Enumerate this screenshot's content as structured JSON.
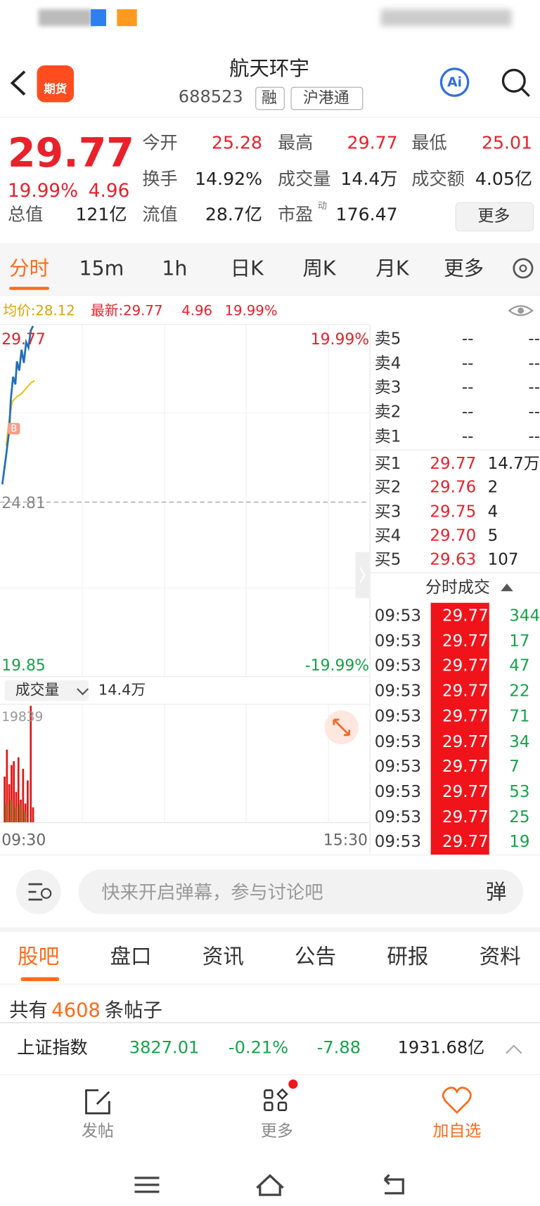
{
  "header": {
    "logo": "期货",
    "title": "航天环宇",
    "code": "688523",
    "tags": [
      "融",
      "沪港通"
    ],
    "ai": "Ai"
  },
  "quote": {
    "price": "29.77",
    "change_pct": "19.99%",
    "change": "4.96",
    "stats": [
      {
        "label": "今开",
        "value": "25.28"
      },
      {
        "label": "最高",
        "value": "29.77"
      },
      {
        "label": "最低",
        "value": "25.01"
      },
      {
        "label": "换手",
        "value": "14.92%"
      },
      {
        "label": "成交量",
        "value": "14.4万"
      },
      {
        "label": "成交额",
        "value": "4.05亿"
      },
      {
        "label": "总值",
        "value": "121亿"
      },
      {
        "label": "流值",
        "value": "28.7亿"
      },
      {
        "label": "市盈",
        "value": "176.47"
      }
    ],
    "pe_note": "动",
    "more": "更多"
  },
  "tabs": [
    "分时",
    "15m",
    "1h",
    "日K",
    "周K",
    "月K",
    "更多"
  ],
  "chart_info": {
    "avg": "均价:28.12",
    "latest": "最新:29.77",
    "change": "4.96",
    "change_pct": "19.99%"
  },
  "chart": {
    "high": "29.77",
    "high_pct": "19.99%",
    "base": "24.81",
    "low": "19.85",
    "low_pct": "-19.99%",
    "marker": "B",
    "volume_selector": "成交量",
    "volume": "14.4万",
    "volume_max": "19839",
    "start_time": "09:30",
    "end_time": "15:30"
  },
  "order_book": {
    "asks": [
      {
        "label": "卖5",
        "price": "--",
        "volume": "--"
      },
      {
        "label": "卖4",
        "price": "--",
        "volume": "--"
      },
      {
        "label": "卖3",
        "price": "--",
        "volume": "--"
      },
      {
        "label": "卖2",
        "price": "--",
        "volume": "--"
      },
      {
        "label": "卖1",
        "price": "--",
        "volume": "--"
      }
    ],
    "bids": [
      {
        "label": "买1",
        "price": "29.77",
        "volume": "14.7万"
      },
      {
        "label": "买2",
        "price": "29.76",
        "volume": "2"
      },
      {
        "label": "买3",
        "price": "29.75",
        "volume": "4"
      },
      {
        "label": "买4",
        "price": "29.70",
        "volume": "5"
      },
      {
        "label": "买5",
        "price": "29.63",
        "volume": "107"
      }
    ]
  },
  "trades": {
    "title": "分时成交",
    "rows": [
      {
        "time": "09:53",
        "price": "29.77",
        "volume": "344"
      },
      {
        "time": "09:53",
        "price": "29.77",
        "volume": "17"
      },
      {
        "time": "09:53",
        "price": "29.77",
        "volume": "47"
      },
      {
        "time": "09:53",
        "price": "29.77",
        "volume": "22"
      },
      {
        "time": "09:53",
        "price": "29.77",
        "volume": "71"
      },
      {
        "time": "09:53",
        "price": "29.77",
        "volume": "34"
      },
      {
        "time": "09:53",
        "price": "29.77",
        "volume": "7"
      },
      {
        "time": "09:53",
        "price": "29.77",
        "volume": "53"
      },
      {
        "time": "09:53",
        "price": "29.77",
        "volume": "25"
      },
      {
        "time": "09:53",
        "price": "29.77",
        "volume": "19"
      }
    ]
  },
  "comment_bar": {
    "placeholder": "快来开启弹幕，参与讨论吧",
    "button": "弹"
  },
  "section_tabs": [
    "股吧",
    "盘口",
    "资讯",
    "公告",
    "研报",
    "资料"
  ],
  "posts": {
    "prefix": "共有",
    "count": "4608",
    "suffix": "条帖子"
  },
  "index_bar": {
    "name": "上证指数",
    "value": "3827.01",
    "change_pct": "-0.21%",
    "change": "-7.88",
    "turnover": "1931.68亿"
  },
  "bottom_nav": [
    "发帖",
    "更多",
    "加自选"
  ]
}
